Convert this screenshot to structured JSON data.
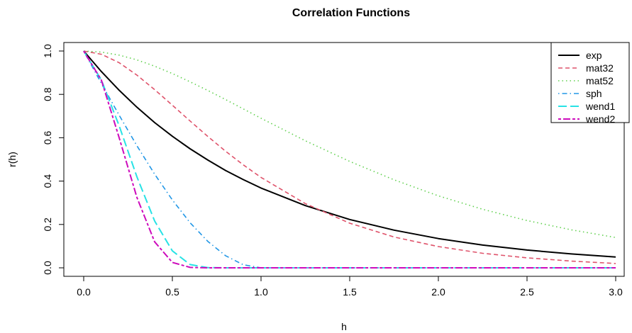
{
  "chart_data": {
    "type": "line",
    "title": "Correlation Functions",
    "xlabel": "h",
    "ylabel": "r(h)",
    "xlim": [
      0,
      3
    ],
    "ylim": [
      0,
      1
    ],
    "xticks": [
      "0.0",
      "0.5",
      "1.0",
      "1.5",
      "2.0",
      "2.5",
      "3.0"
    ],
    "yticks": [
      "0.0",
      "0.2",
      "0.4",
      "0.6",
      "0.8",
      "1.0"
    ],
    "grid": false,
    "legend_position": "top-right",
    "x": [
      0,
      0.1,
      0.2,
      0.3,
      0.4,
      0.5,
      0.6,
      0.7,
      0.8,
      0.9,
      1.0,
      1.25,
      1.5,
      1.75,
      2.0,
      2.25,
      2.5,
      2.75,
      3.0
    ],
    "series": [
      {
        "name": "exp",
        "color": "#000000",
        "dash": "solid",
        "values": [
          1.0,
          0.905,
          0.819,
          0.741,
          0.67,
          0.607,
          0.549,
          0.497,
          0.449,
          0.407,
          0.368,
          0.287,
          0.223,
          0.174,
          0.135,
          0.105,
          0.082,
          0.064,
          0.05
        ]
      },
      {
        "name": "mat32",
        "color": "#DF536B",
        "dash": "dashed",
        "values": [
          1.0,
          0.985,
          0.946,
          0.889,
          0.822,
          0.75,
          0.677,
          0.606,
          0.538,
          0.475,
          0.417,
          0.296,
          0.206,
          0.142,
          0.098,
          0.067,
          0.046,
          0.031,
          0.02
        ]
      },
      {
        "name": "mat52",
        "color": "#61D04F",
        "dash": "dotted",
        "values": [
          1.0,
          0.995,
          0.981,
          0.959,
          0.93,
          0.896,
          0.858,
          0.818,
          0.776,
          0.733,
          0.69,
          0.586,
          0.491,
          0.406,
          0.332,
          0.27,
          0.218,
          0.175,
          0.14
        ]
      },
      {
        "name": "sph",
        "color": "#2297E6",
        "dash": "dotdash",
        "values": [
          1.0,
          0.85,
          0.704,
          0.563,
          0.432,
          0.313,
          0.208,
          0.122,
          0.056,
          0.014,
          0,
          0,
          0,
          0,
          0,
          0,
          0,
          0,
          0
        ]
      },
      {
        "name": "wend1",
        "color": "#28E2E5",
        "dash": "longdash",
        "values": [
          1.0,
          0.866,
          0.655,
          0.42,
          0.216,
          0.078,
          0.015,
          0.001,
          0,
          0,
          0,
          0,
          0,
          0,
          0,
          0,
          0,
          0,
          0
        ]
      },
      {
        "name": "wend2",
        "color": "#CD0BBC",
        "dash": "twodash",
        "values": [
          1.0,
          0.865,
          0.6,
          0.325,
          0.12,
          0.025,
          0.002,
          0,
          0,
          0,
          0,
          0,
          0,
          0,
          0,
          0,
          0,
          0,
          0
        ]
      }
    ]
  }
}
